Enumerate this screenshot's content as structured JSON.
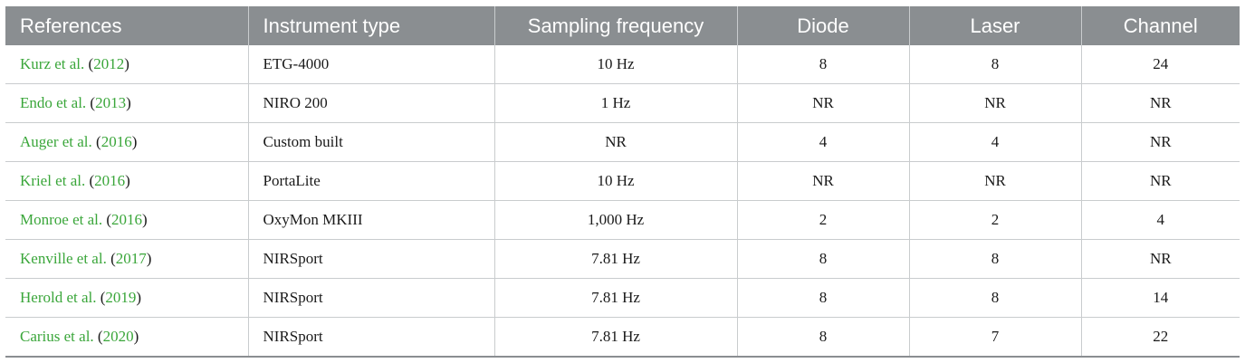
{
  "colors": {
    "header_bg": "#8a8e91",
    "header_text": "#ffffff",
    "link": "#3aa63a",
    "grid": "#c9ccce"
  },
  "table": {
    "headers": [
      "References",
      "Instrument type",
      "Sampling frequency",
      "Diode",
      "Laser",
      "Channel"
    ],
    "rows": [
      {
        "author": "Kurz et al.",
        "year": "2012",
        "instrument": "ETG-4000",
        "sampling": "10 Hz",
        "diode": "8",
        "laser": "8",
        "channel": "24"
      },
      {
        "author": "Endo et al.",
        "year": "2013",
        "instrument": "NIRO 200",
        "sampling": "1 Hz",
        "diode": "NR",
        "laser": "NR",
        "channel": "NR"
      },
      {
        "author": "Auger et al.",
        "year": "2016",
        "instrument": "Custom built",
        "sampling": "NR",
        "diode": "4",
        "laser": "4",
        "channel": "NR"
      },
      {
        "author": "Kriel et al.",
        "year": "2016",
        "instrument": "PortaLite",
        "sampling": "10 Hz",
        "diode": "NR",
        "laser": "NR",
        "channel": "NR"
      },
      {
        "author": "Monroe et al.",
        "year": "2016",
        "instrument": "OxyMon MKIII",
        "sampling": "1,000 Hz",
        "diode": "2",
        "laser": "2",
        "channel": "4"
      },
      {
        "author": "Kenville et al.",
        "year": "2017",
        "instrument": "NIRSport",
        "sampling": "7.81 Hz",
        "diode": "8",
        "laser": "8",
        "channel": "NR"
      },
      {
        "author": "Herold et al.",
        "year": "2019",
        "instrument": "NIRSport",
        "sampling": "7.81 Hz",
        "diode": "8",
        "laser": "8",
        "channel": "14"
      },
      {
        "author": "Carius et al.",
        "year": "2020",
        "instrument": "NIRSport",
        "sampling": "7.81 Hz",
        "diode": "8",
        "laser": "7",
        "channel": "22"
      }
    ]
  }
}
